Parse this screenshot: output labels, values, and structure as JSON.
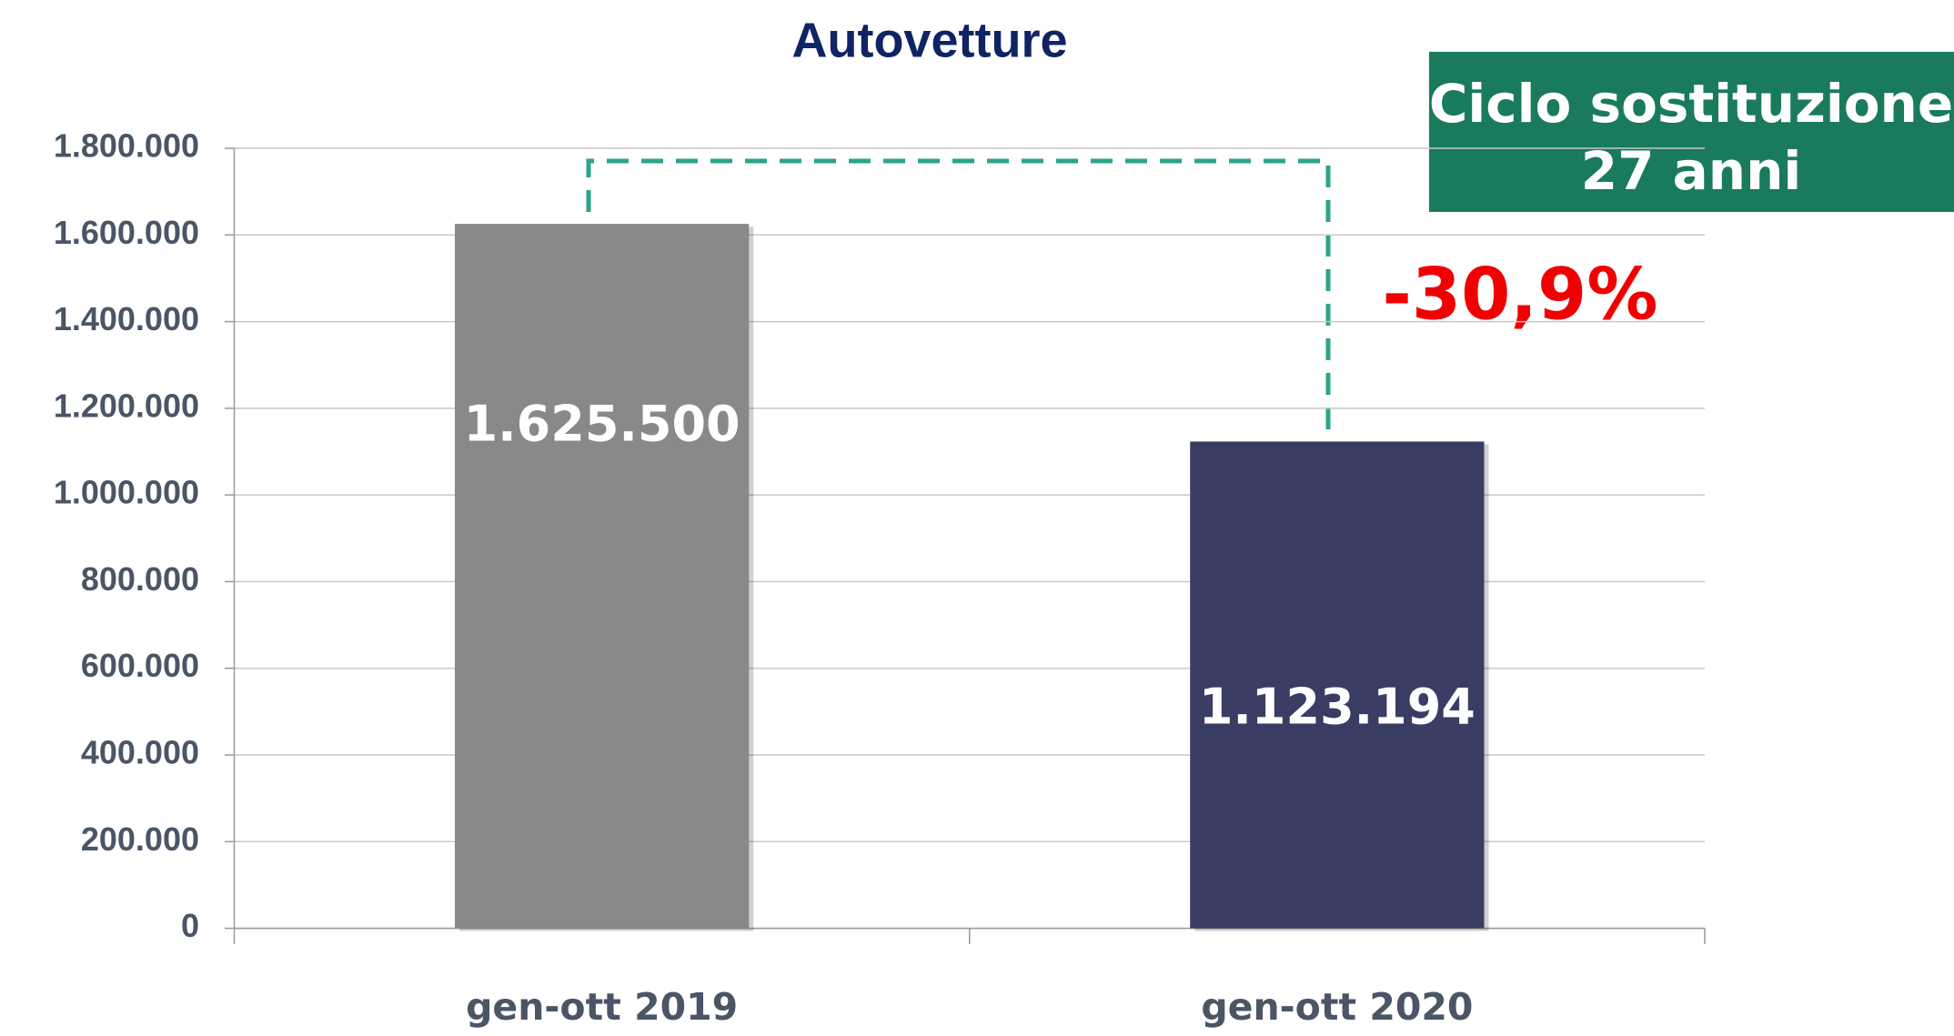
{
  "chart_data": {
    "type": "bar",
    "title": "Autovetture",
    "categories": [
      "gen-ott 2019",
      "gen-ott 2020"
    ],
    "values": [
      1625500,
      1123194
    ],
    "value_labels": [
      "1.625.500",
      "1.123.194"
    ],
    "colors": [
      "#898989",
      "#393d63"
    ],
    "ylim": [
      0,
      1800000
    ],
    "yticks": [
      0,
      {
        "value": 200000,
        "label": "200.000"
      },
      {
        "value": 400000,
        "label": "400.000"
      },
      {
        "value": 600000,
        "label": "600.000"
      },
      {
        "value": 800000,
        "label": "800.000"
      },
      {
        "value": 1000000,
        "label": "1.000.000"
      },
      {
        "value": 1200000,
        "label": "1.200.000"
      },
      {
        "value": 1400000,
        "label": "1.400.000"
      },
      {
        "value": 1600000,
        "label": "1.600.000"
      },
      {
        "value": 1800000,
        "label": "1.800.000"
      }
    ],
    "grid": true,
    "annotations": {
      "box": [
        "Ciclo sostituzione",
        "27 anni"
      ],
      "change": "-30,9%"
    }
  }
}
